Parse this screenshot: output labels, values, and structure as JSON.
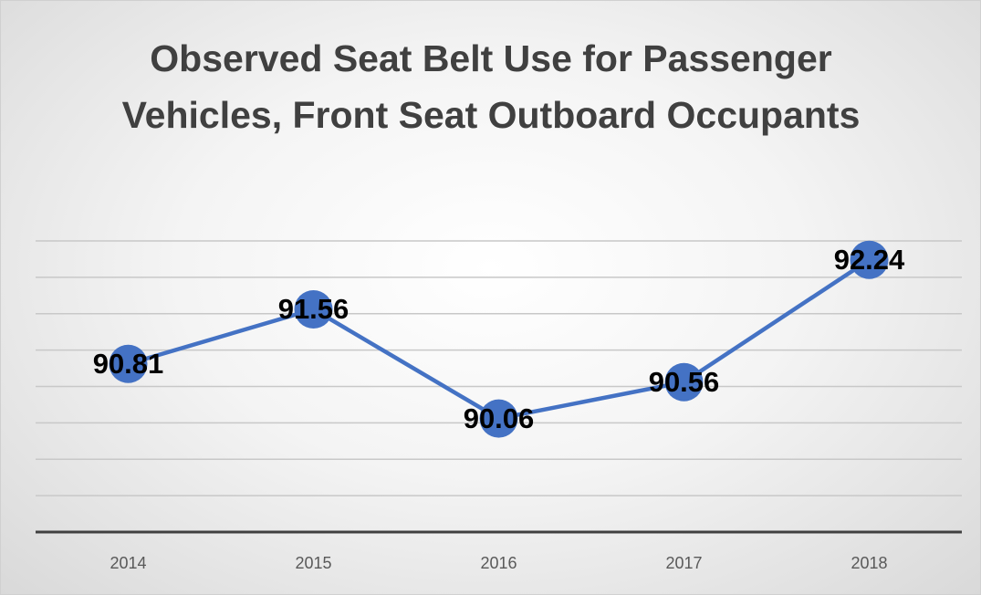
{
  "chart_data": {
    "type": "line",
    "title": "Observed Seat Belt Use for Passenger Vehicles, Front Seat Outboard Occupants",
    "categories": [
      "2014",
      "2015",
      "2016",
      "2017",
      "2018"
    ],
    "values": [
      90.81,
      91.56,
      90.06,
      90.56,
      92.24
    ],
    "color": "#4472c4",
    "ylim": [
      88.5,
      92.5
    ],
    "yticks": [
      88.5,
      89,
      89.5,
      90,
      90.5,
      91,
      91.5,
      92,
      92.5
    ],
    "grid": true
  }
}
